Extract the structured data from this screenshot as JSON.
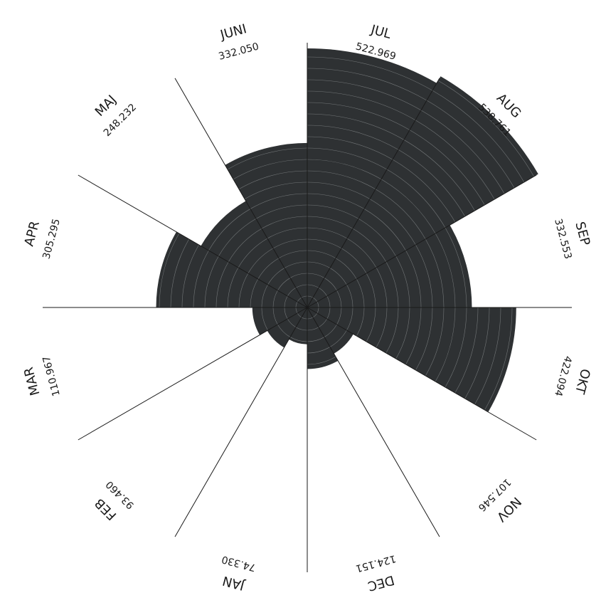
{
  "chart_data": {
    "type": "polar-area",
    "title": "",
    "start_angle_deg": 0,
    "direction": "clockwise",
    "sector_color": "#2e3133",
    "ring_line_color": "#8a8d8f",
    "divider_color": "#1a1a1a",
    "label_color": "#1a1a1a",
    "categories": [
      "JUL",
      "AUG",
      "SEP",
      "OKT",
      "NOV",
      "DEC",
      "JAN",
      "FEB",
      "MAR",
      "APR",
      "MAJ",
      "JUNI"
    ],
    "values": [
      522.969,
      538.761,
      332.553,
      422.094,
      107.546,
      124.151,
      74.33,
      93.46,
      110.967,
      305.295,
      248.232,
      332.05
    ],
    "value_labels": [
      "522.969",
      "538.761",
      "332.553",
      "422.094",
      "107.546",
      "124.151",
      "74.330",
      "93.460",
      "110.967",
      "305.295",
      "248.232",
      "332.050"
    ],
    "grid": true
  }
}
